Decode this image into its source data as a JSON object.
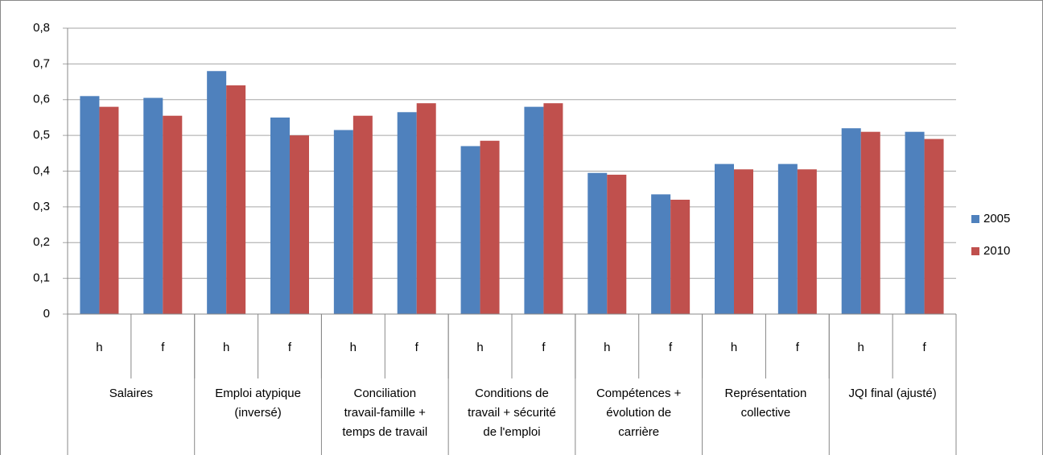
{
  "chart_data": {
    "type": "bar",
    "categories": [
      "h",
      "f",
      "h",
      "f",
      "h",
      "f",
      "h",
      "f",
      "h",
      "f",
      "h",
      "f",
      "h",
      "f"
    ],
    "groups": [
      [
        "Salaires"
      ],
      [
        "Emploi atypique",
        "(inversé)"
      ],
      [
        "Conciliation",
        "travail-famille +",
        "temps de travail"
      ],
      [
        "Conditions de",
        "travail + sécurité",
        "de l'emploi"
      ],
      [
        "Compétences +",
        "évolution de",
        "carrière"
      ],
      [
        "Représentation",
        "collective"
      ],
      [
        "JQI final (ajusté)"
      ]
    ],
    "series": [
      {
        "name": "2005",
        "color": "#4f81bd",
        "values": [
          0.61,
          0.605,
          0.68,
          0.55,
          0.515,
          0.565,
          0.47,
          0.58,
          0.395,
          0.335,
          0.42,
          0.42,
          0.52,
          0.51
        ]
      },
      {
        "name": "2010",
        "color": "#c0504d",
        "values": [
          0.58,
          0.555,
          0.64,
          0.5,
          0.555,
          0.59,
          0.485,
          0.59,
          0.39,
          0.32,
          0.405,
          0.405,
          0.51,
          0.49
        ]
      }
    ],
    "ylim": [
      0,
      0.8
    ],
    "yticks": [
      0,
      {
        "value": 0.1,
        "label": "0,1"
      },
      {
        "value": 0.2,
        "label": "0,2"
      },
      {
        "value": 0.3,
        "label": "0,3"
      },
      {
        "value": 0.4,
        "label": "0,4"
      },
      {
        "value": 0.5,
        "label": "0,5"
      },
      {
        "value": 0.6,
        "label": "0,6"
      },
      {
        "value": 0.7,
        "label": "0,7"
      },
      {
        "value": 0.8,
        "label": "0,8"
      }
    ],
    "grid": true,
    "legend": "right"
  }
}
